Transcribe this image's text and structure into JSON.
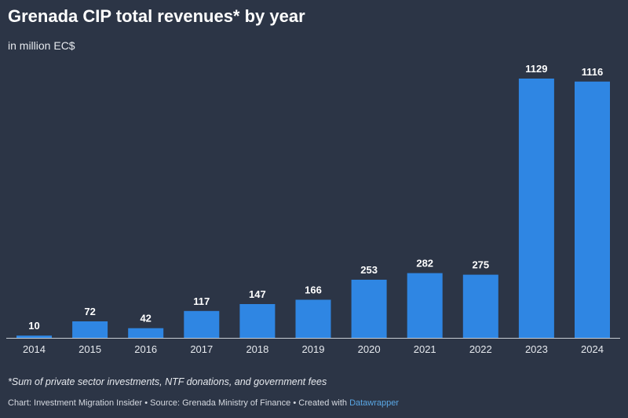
{
  "colors": {
    "background": "#2c3546",
    "bar": "#2f86e3",
    "axis": "#c7ccd4",
    "link": "#5aa8e6"
  },
  "header": {
    "title": "Grenada CIP total revenues* by year",
    "subtitle": "in million EC$"
  },
  "footer": {
    "note": "*Sum of private sector investments, NTF donations, and government fees",
    "credits": "Chart: Investment Migration Insider • Source: Grenada Ministry of Finance • Created with",
    "credits_link": "Datawrapper"
  },
  "chart_data": {
    "type": "bar",
    "title": "Grenada CIP total revenues* by year",
    "subtitle": "in million EC$",
    "categories": [
      "2014",
      "2015",
      "2016",
      "2017",
      "2018",
      "2019",
      "2020",
      "2021",
      "2022",
      "2023",
      "2024"
    ],
    "values": [
      10,
      72,
      42,
      117,
      147,
      166,
      253,
      282,
      275,
      1129,
      1116
    ],
    "data_labels": [
      "10",
      "72",
      "42",
      "117",
      "147",
      "166",
      "253",
      "282",
      "275",
      "1129",
      "1116"
    ],
    "xlabel": "",
    "ylabel": "",
    "ylim": [
      0,
      1129
    ],
    "grid": false,
    "legend": "none"
  }
}
